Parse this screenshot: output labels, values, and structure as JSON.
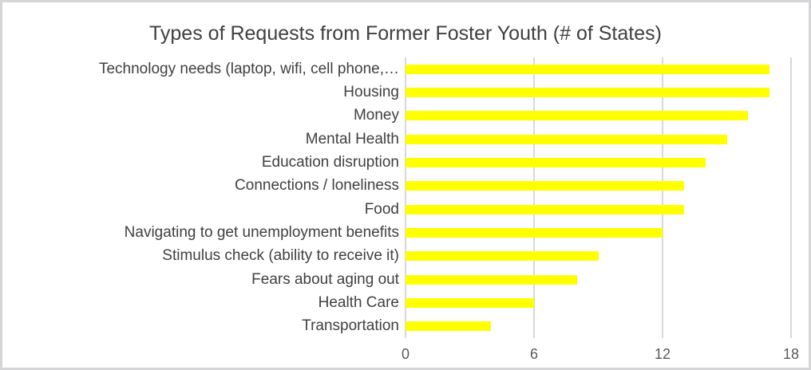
{
  "chart_data": {
    "type": "bar",
    "orientation": "horizontal",
    "title": "Types of Requests from Former Foster Youth (# of States)",
    "categories": [
      "Technology needs (laptop, wifi, cell phone,…",
      "Housing",
      "Money",
      "Mental Health",
      "Education disruption",
      "Connections / loneliness",
      "Food",
      "Navigating to get unemployment benefits",
      "Stimulus check (ability to receive it)",
      "Fears about aging out",
      "Health Care",
      "Transportation"
    ],
    "values": [
      17,
      17,
      16,
      15,
      14,
      13,
      13,
      12,
      9,
      8,
      6,
      4
    ],
    "xlabel": "",
    "ylabel": "",
    "xlim": [
      0,
      18
    ],
    "xticks": [
      0,
      6,
      12,
      18
    ],
    "grid": "vertical",
    "legend": "none",
    "bar_color": "#FFFF00",
    "colors": {
      "title_text": "#404040",
      "category_text": "#404040",
      "tick_text": "#595959",
      "gridline": "#D9D9D9",
      "frame_border": "#D5D5D7",
      "background": "#FFFFFF"
    }
  }
}
